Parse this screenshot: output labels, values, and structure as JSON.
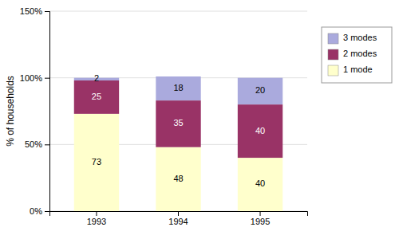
{
  "chart_data": {
    "type": "bar",
    "stacked": true,
    "categories": [
      "1993",
      "1994",
      "1995"
    ],
    "series": [
      {
        "name": "1 mode",
        "color": "#FFFFCC",
        "values": [
          73,
          48,
          40
        ]
      },
      {
        "name": "2 modes",
        "color": "#993366",
        "values": [
          25,
          35,
          40
        ]
      },
      {
        "name": "3 modes",
        "color": "#AAAADD",
        "values": [
          2,
          18,
          20
        ]
      }
    ],
    "ylabel": "% of households",
    "ylim": [
      0,
      150
    ],
    "yticks": [
      {
        "value": 0,
        "label": "0%"
      },
      {
        "value": 50,
        "label": "50%"
      },
      {
        "value": 100,
        "label": "100%"
      },
      {
        "value": 150,
        "label": "150%"
      }
    ],
    "grid": true,
    "legend": "right",
    "data_labels": true
  }
}
